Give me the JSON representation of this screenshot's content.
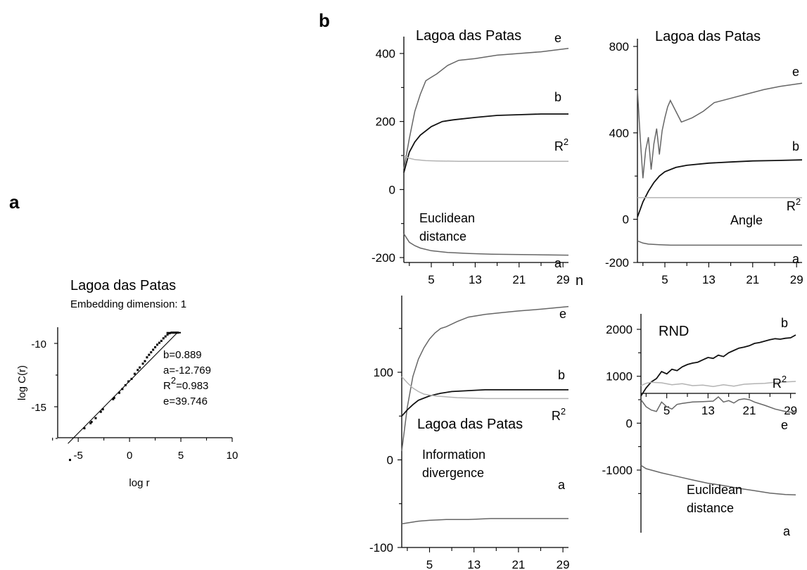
{
  "panel_labels": {
    "a": "a",
    "b": "b"
  },
  "chart_data": [
    {
      "id": "a",
      "type": "scatter",
      "title": "Lagoa das Patas",
      "subtitle": "Embedding dimension: 1",
      "xlabel": "log r",
      "ylabel": "log C(r)",
      "xlim": [
        -7,
        10
      ],
      "ylim": [
        -19.5,
        -7.5
      ],
      "xticks": [
        -5,
        0,
        5,
        10
      ],
      "yticks": [
        -10,
        -15
      ],
      "annotations": [
        "b=0.889",
        "a=-12.769",
        "R²=0.983",
        "e=39.746"
      ],
      "fit_line": {
        "x": [
          -6,
          4.6
        ],
        "y": [
          -17.9,
          -9.2
        ]
      },
      "plateau": {
        "x": [
          3.6,
          5
        ],
        "y": [
          -9.15,
          -9.15
        ]
      },
      "points": [
        [
          -5.8,
          -19.2
        ],
        [
          -4.4,
          -16.7
        ],
        [
          -3.8,
          -16.3
        ],
        [
          -3.7,
          -16.2
        ],
        [
          -3.3,
          -15.9
        ],
        [
          -2.8,
          -15.4
        ],
        [
          -2.6,
          -15.2
        ],
        [
          -1.6,
          -14.4
        ],
        [
          -1.5,
          -14.3
        ],
        [
          -1.0,
          -13.9
        ],
        [
          -0.7,
          -13.6
        ],
        [
          -0.4,
          -13.3
        ],
        [
          -0.1,
          -13.0
        ],
        [
          0.2,
          -12.8
        ],
        [
          0.5,
          -12.4
        ],
        [
          0.8,
          -12.1
        ],
        [
          1.0,
          -11.9
        ],
        [
          1.3,
          -11.6
        ],
        [
          1.5,
          -11.4
        ],
        [
          1.7,
          -11.1
        ],
        [
          1.9,
          -10.9
        ],
        [
          2.1,
          -10.7
        ],
        [
          2.3,
          -10.5
        ],
        [
          2.5,
          -10.3
        ],
        [
          2.7,
          -10.1
        ],
        [
          2.9,
          -9.95
        ],
        [
          3.1,
          -9.8
        ],
        [
          3.3,
          -9.6
        ],
        [
          3.5,
          -9.45
        ],
        [
          3.7,
          -9.3
        ],
        [
          3.9,
          -9.2
        ],
        [
          4.1,
          -9.15
        ],
        [
          4.3,
          -9.15
        ],
        [
          4.5,
          -9.15
        ],
        [
          4.7,
          -9.15
        ]
      ]
    },
    {
      "id": "b1",
      "type": "line",
      "title": "Lagoa das Patas",
      "text": [
        "Euclidean",
        "distance"
      ],
      "xlim": [
        0,
        30
      ],
      "ylim": [
        -210,
        470
      ],
      "xticks": [
        5,
        13,
        21,
        29
      ],
      "xticks_minor": [
        1,
        9,
        17,
        25
      ],
      "yticks": [
        400,
        200,
        0,
        -200
      ],
      "yticks_minor": [
        300,
        100,
        -100
      ],
      "x_axis_label": "n",
      "series": [
        {
          "name": "e",
          "x": [
            0,
            1,
            2,
            3,
            4,
            5,
            6,
            8,
            10,
            13,
            17,
            21,
            25,
            30
          ],
          "y": [
            60,
            150,
            230,
            280,
            320,
            330,
            340,
            365,
            380,
            385,
            395,
            400,
            405,
            415
          ]
        },
        {
          "name": "b",
          "x": [
            0,
            1,
            2,
            3,
            5,
            7,
            9,
            13,
            17,
            21,
            25,
            30
          ],
          "y": [
            50,
            110,
            140,
            160,
            185,
            200,
            205,
            212,
            218,
            220,
            222,
            222
          ]
        },
        {
          "name": "R²",
          "x": [
            0,
            1,
            2,
            4,
            6,
            10,
            15,
            20,
            30
          ],
          "y": [
            100,
            92,
            88,
            85,
            84,
            83,
            83,
            83,
            83
          ]
        },
        {
          "name": "a",
          "x": [
            0,
            1,
            2,
            3,
            5,
            8,
            12,
            16,
            20,
            25,
            30
          ],
          "y": [
            -130,
            -155,
            -165,
            -172,
            -180,
            -185,
            -188,
            -190,
            -191,
            -192,
            -193
          ]
        }
      ]
    },
    {
      "id": "b2",
      "type": "line",
      "title": "Lagoa das Patas",
      "text": [
        "Angle"
      ],
      "xlim": [
        0,
        30
      ],
      "ylim": [
        -200,
        840
      ],
      "xticks": [
        5,
        13,
        21,
        29
      ],
      "xticks_minor": [
        1,
        9,
        17,
        25
      ],
      "yticks": [
        800,
        400,
        0,
        -200
      ],
      "yticks_minor": [
        600,
        200
      ],
      "series": [
        {
          "name": "e",
          "x": [
            0,
            0.5,
            1,
            1.5,
            2,
            2.5,
            3,
            3.5,
            4,
            4.5,
            5,
            5.5,
            6,
            7,
            8,
            9,
            10,
            12,
            14,
            17,
            20,
            23,
            26,
            30
          ],
          "y": [
            600,
            380,
            190,
            320,
            380,
            230,
            350,
            420,
            300,
            410,
            470,
            520,
            550,
            500,
            450,
            460,
            470,
            500,
            540,
            560,
            580,
            600,
            615,
            630
          ]
        },
        {
          "name": "b",
          "x": [
            0,
            1,
            2,
            3,
            4,
            5,
            7,
            9,
            13,
            17,
            21,
            25,
            30
          ],
          "y": [
            10,
            80,
            130,
            170,
            200,
            220,
            240,
            250,
            260,
            265,
            270,
            272,
            275
          ]
        },
        {
          "name": "R²",
          "x": [
            0,
            1,
            2,
            30
          ],
          "y": [
            100,
            100,
            100,
            100
          ]
        },
        {
          "name": "a",
          "x": [
            0,
            1,
            2,
            4,
            6,
            10,
            15,
            20,
            30
          ],
          "y": [
            -100,
            -110,
            -115,
            -118,
            -120,
            -120,
            -120,
            -120,
            -120
          ]
        }
      ]
    },
    {
      "id": "b3",
      "type": "line",
      "title": "Lagoa das Patas",
      "text": [
        "Information",
        "divergence"
      ],
      "xlim": [
        0,
        30
      ],
      "ylim": [
        -100,
        190
      ],
      "xticks": [
        5,
        13,
        21,
        29
      ],
      "xticks_minor": [
        1,
        9,
        17,
        25
      ],
      "yticks": [
        100,
        0,
        -100
      ],
      "yticks_minor": [
        150,
        50,
        -50
      ],
      "series": [
        {
          "name": "e",
          "x": [
            0,
            1,
            2,
            3,
            4,
            5,
            6,
            7,
            8,
            10,
            12,
            15,
            18,
            21,
            25,
            30
          ],
          "y": [
            10,
            60,
            95,
            115,
            128,
            138,
            145,
            150,
            152,
            158,
            163,
            166,
            168,
            170,
            172,
            175
          ]
        },
        {
          "name": "b",
          "x": [
            0,
            1,
            2,
            3,
            5,
            7,
            9,
            12,
            15,
            20,
            25,
            30
          ],
          "y": [
            50,
            57,
            63,
            68,
            73,
            76,
            78,
            79,
            80,
            80,
            80,
            80
          ]
        },
        {
          "name": "R²",
          "x": [
            0,
            1,
            2,
            3,
            4,
            6,
            8,
            10,
            15,
            20,
            25,
            30
          ],
          "y": [
            95,
            88,
            82,
            78,
            75,
            73,
            72,
            71,
            70,
            70,
            70,
            70
          ]
        },
        {
          "name": "a",
          "x": [
            0,
            1,
            2,
            3,
            5,
            8,
            12,
            16,
            20,
            25,
            30
          ],
          "y": [
            -73,
            -72,
            -71,
            -70,
            -69,
            -68,
            -68,
            -67,
            -67,
            -67,
            -67
          ]
        }
      ]
    },
    {
      "id": "b4",
      "type": "line",
      "title": "RND",
      "text": [
        "Euclidean",
        "distance"
      ],
      "xlim": [
        0,
        30
      ],
      "ylim": [
        -1650,
        2150
      ],
      "xticks": [
        5,
        13,
        21,
        29
      ],
      "xticks_minor": [
        1,
        9,
        17,
        25
      ],
      "yticks": [
        2000,
        1000,
        0,
        -1000
      ],
      "yticks_minor": [
        1500,
        500,
        -500,
        -1500
      ],
      "series": [
        {
          "name": "b",
          "x": [
            0,
            1,
            2,
            3,
            4,
            5,
            6,
            7,
            8,
            9,
            10,
            11,
            12,
            13,
            14,
            15,
            16,
            17,
            18,
            19,
            20,
            21,
            22,
            23,
            24,
            25,
            26,
            27,
            28,
            29,
            30
          ],
          "y": [
            580,
            750,
            880,
            950,
            1100,
            1050,
            1150,
            1120,
            1200,
            1250,
            1280,
            1300,
            1350,
            1400,
            1380,
            1450,
            1420,
            1500,
            1550,
            1600,
            1620,
            1650,
            1700,
            1720,
            1750,
            1780,
            1800,
            1790,
            1810,
            1820,
            1880
          ]
        },
        {
          "name": "R²",
          "x": [
            0,
            1,
            2,
            4,
            6,
            8,
            10,
            12,
            14,
            16,
            18,
            20,
            22,
            24,
            26,
            28,
            30
          ],
          "y": [
            800,
            850,
            870,
            860,
            820,
            840,
            800,
            810,
            780,
            820,
            790,
            830,
            840,
            850,
            870,
            880,
            890
          ]
        },
        {
          "name": "e",
          "x": [
            0,
            1,
            2,
            3,
            4,
            5,
            6,
            7,
            8,
            10,
            12,
            14,
            15,
            16,
            17,
            18,
            19,
            20,
            21,
            22,
            24,
            26,
            28,
            30
          ],
          "y": [
            500,
            350,
            280,
            250,
            450,
            350,
            300,
            400,
            420,
            450,
            460,
            470,
            560,
            450,
            480,
            430,
            500,
            520,
            500,
            450,
            380,
            300,
            250,
            220
          ]
        },
        {
          "name": "a",
          "x": [
            0,
            1,
            2,
            4,
            6,
            8,
            10,
            13,
            16,
            19,
            22,
            25,
            28,
            30
          ],
          "y": [
            -900,
            -970,
            -1000,
            -1060,
            -1110,
            -1160,
            -1210,
            -1280,
            -1330,
            -1390,
            -1440,
            -1490,
            -1520,
            -1530
          ]
        }
      ]
    }
  ]
}
